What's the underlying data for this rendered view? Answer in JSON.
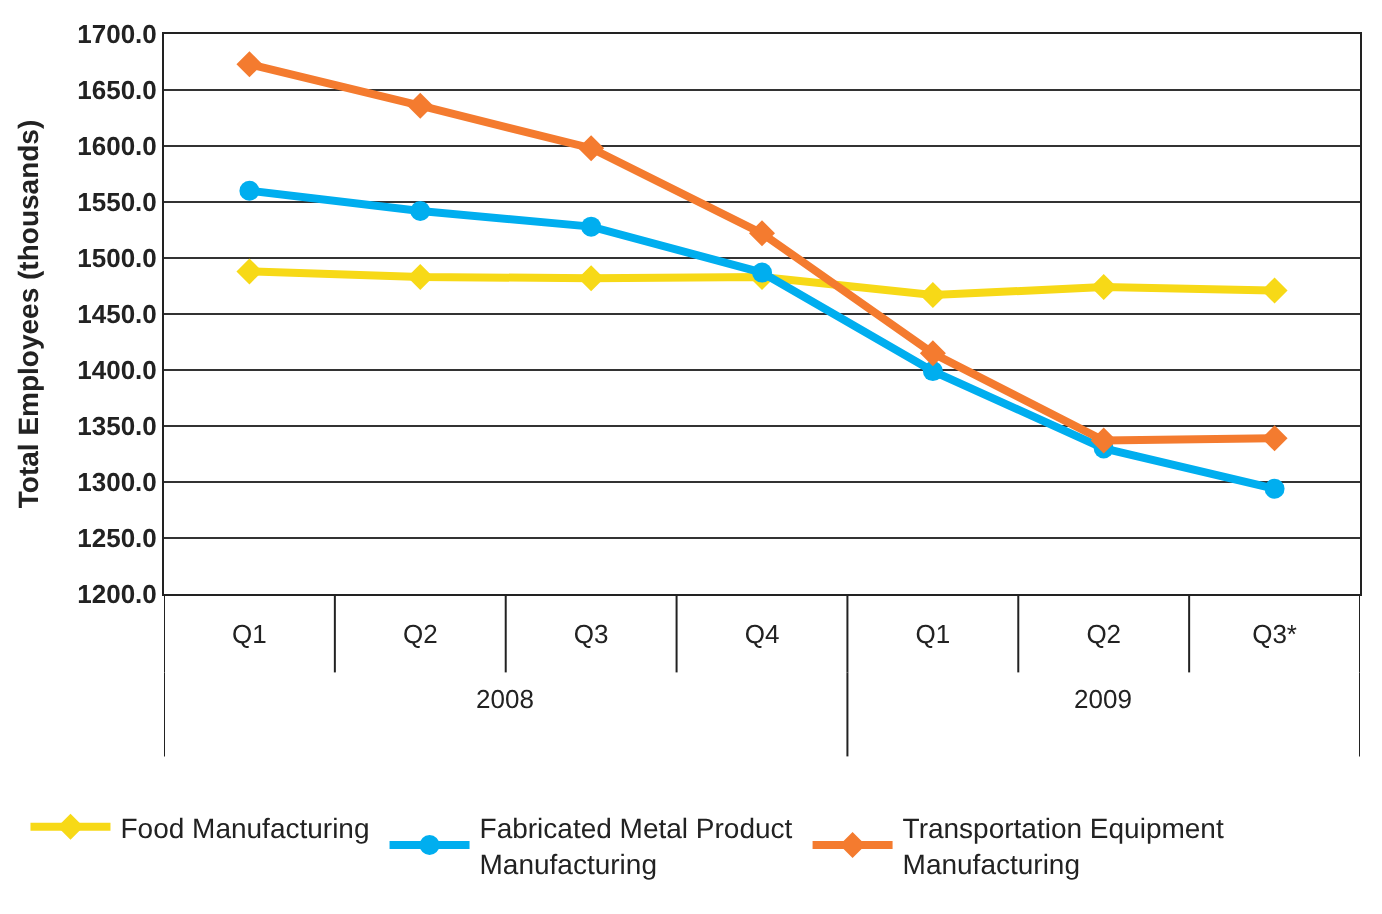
{
  "chart_data": {
    "type": "line",
    "ylabel": "Total Employees (thousands)",
    "categories": [
      "Q1",
      "Q2",
      "Q3",
      "Q4",
      "Q1",
      "Q2",
      "Q3*"
    ],
    "annotations": [
      "2008",
      "2009"
    ],
    "series": [
      {
        "name": "Food Manufacturing",
        "color": "#f7d917",
        "marker": "diamond",
        "values": [
          1488,
          1483,
          1482,
          1483,
          1467,
          1474,
          1471
        ]
      },
      {
        "name": "Fabricated Metal Product Manufacturing",
        "color": "#00aeef",
        "marker": "circle",
        "values": [
          1560,
          1542,
          1528,
          1487,
          1399,
          1330,
          1294
        ]
      },
      {
        "name": "Transportation Equipment Manufacturing",
        "color": "#f47b2f",
        "marker": "diamond",
        "values": [
          1673,
          1636,
          1598,
          1522,
          1415,
          1337,
          1339
        ]
      }
    ],
    "ylim": [
      1200,
      1700
    ],
    "yticks": [
      {
        "value": 1200,
        "label": "1200.0"
      },
      {
        "value": 1250,
        "label": "1250.0"
      },
      {
        "value": 1300,
        "label": "1300.0"
      },
      {
        "value": 1350,
        "label": "1350.0"
      },
      {
        "value": 1400,
        "label": "1400.0"
      },
      {
        "value": 1450,
        "label": "1450.0"
      },
      {
        "value": 1500,
        "label": "1500.0"
      },
      {
        "value": 1550,
        "label": "1550.0"
      },
      {
        "value": 1600,
        "label": "1600.0"
      },
      {
        "value": 1650,
        "label": "1650.0"
      },
      {
        "value": 1700,
        "label": "1700.0"
      }
    ],
    "grid": "y",
    "legend": "bottom",
    "line_style": "solid"
  }
}
